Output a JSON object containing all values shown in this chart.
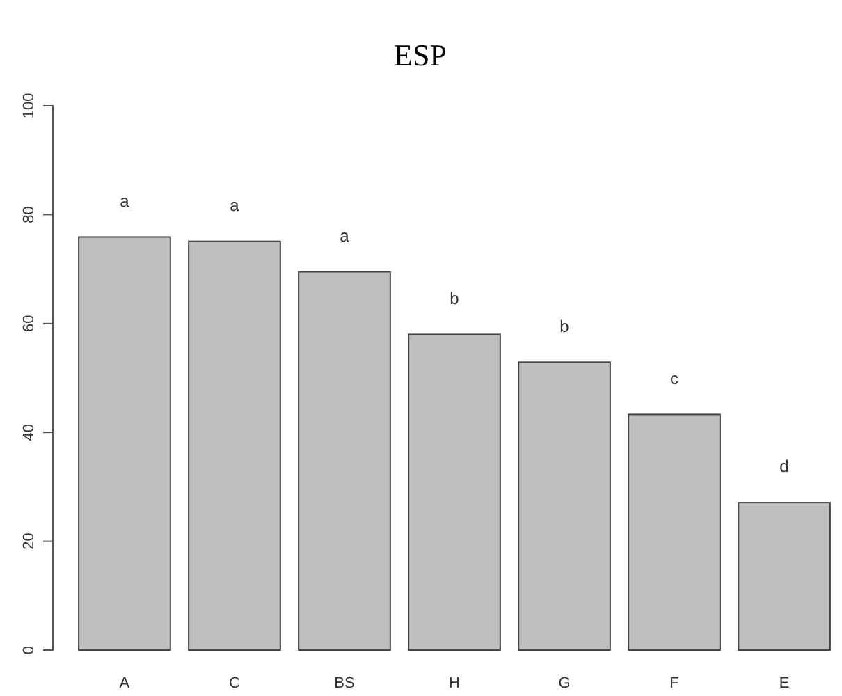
{
  "chart_data": {
    "type": "bar",
    "title": "ESP",
    "categories": [
      "A",
      "C",
      "BS",
      "H",
      "G",
      "F",
      "E"
    ],
    "values": [
      75.9,
      75.1,
      69.5,
      58.0,
      52.9,
      43.3,
      27.1
    ],
    "color": "#bebebe",
    "ylim": [
      0,
      100
    ],
    "yticks": [
      0,
      20,
      40,
      60,
      80,
      100
    ],
    "grid": false,
    "value_labels": [
      "a",
      "a",
      "a",
      "b",
      "b",
      "c",
      "d"
    ]
  }
}
